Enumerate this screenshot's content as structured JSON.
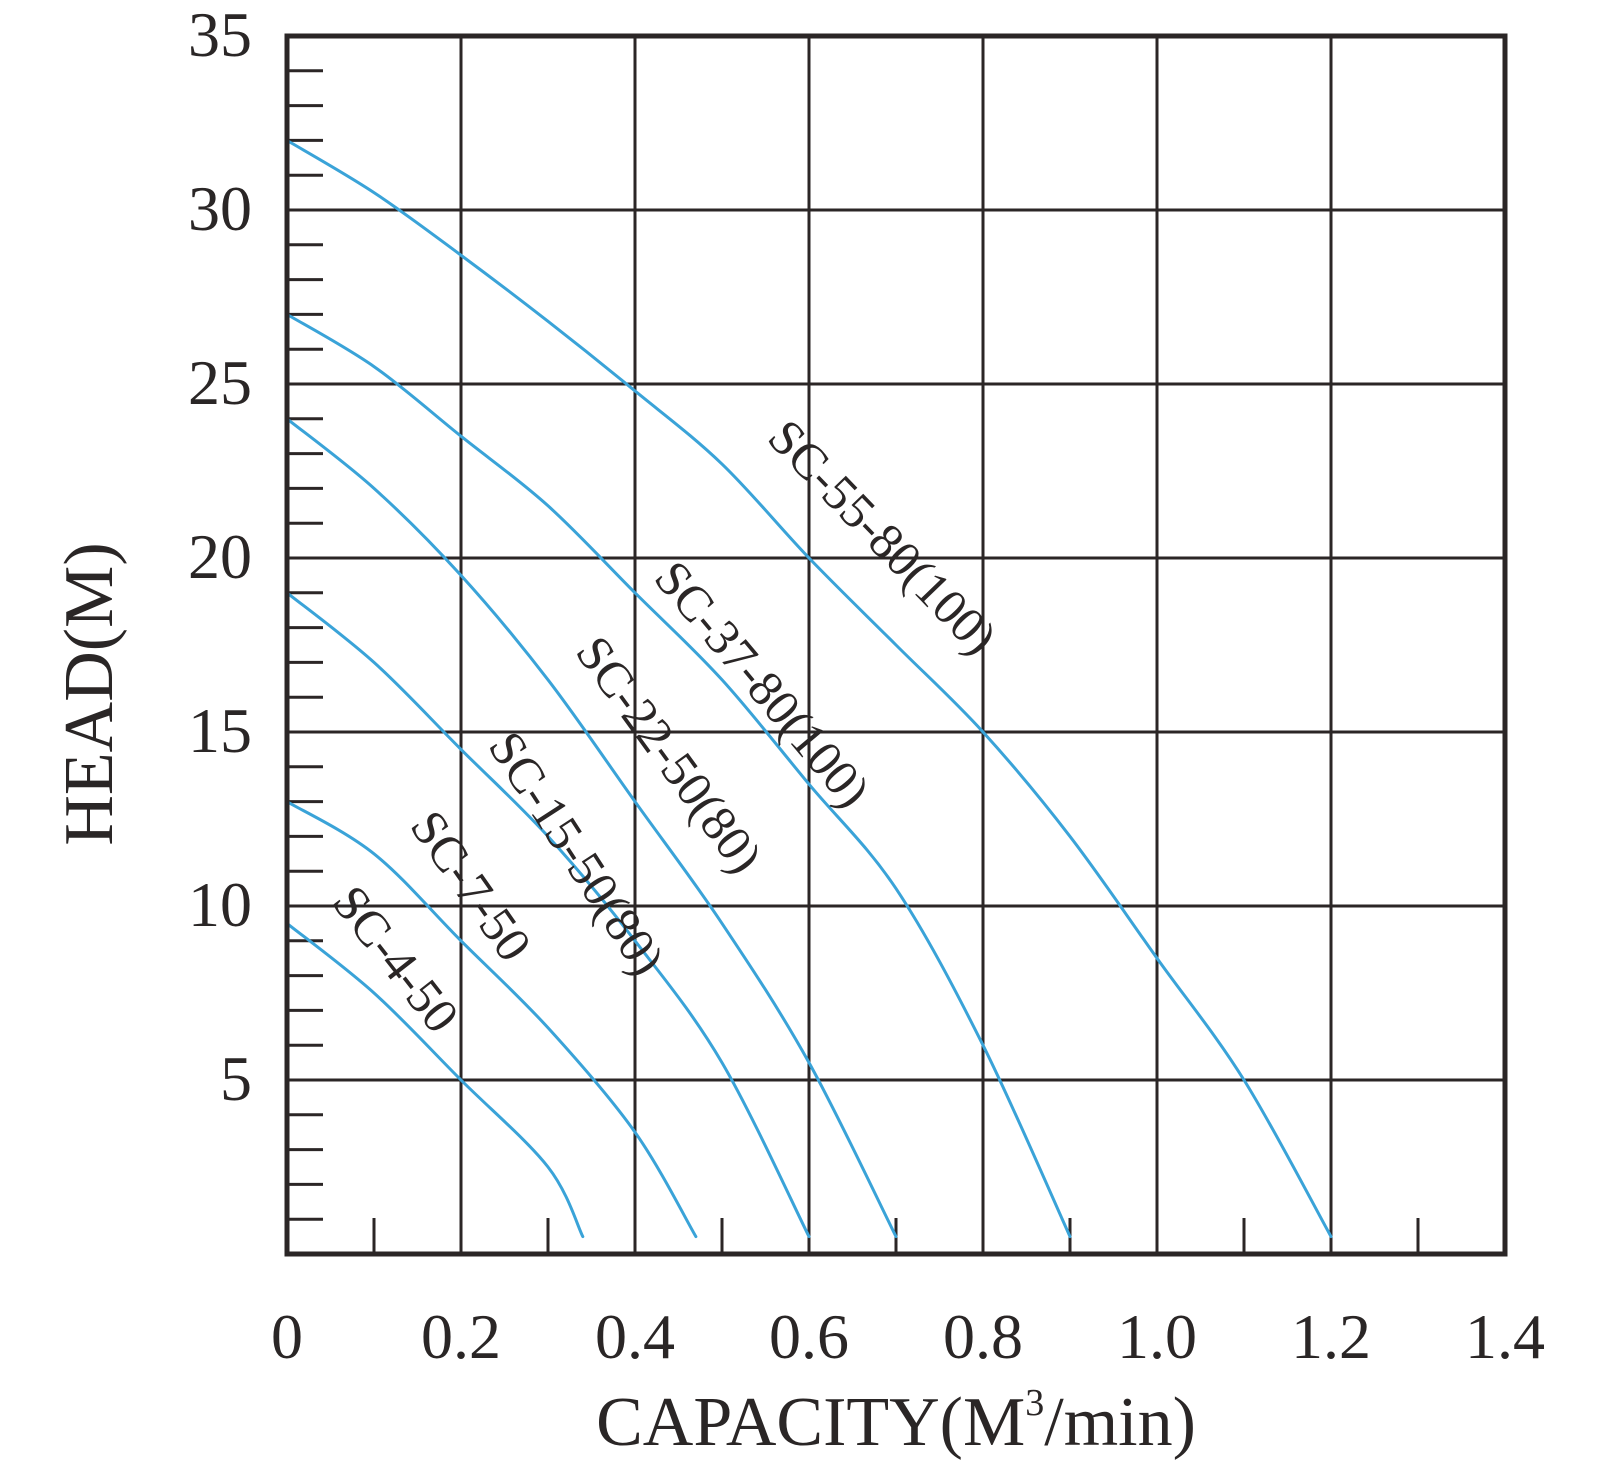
{
  "chart_data": {
    "type": "line",
    "title": "",
    "xlabel": "CAPACITY(M",
    "xlabel_superscript": "3",
    "xlabel_suffix": "/min)",
    "ylabel": "HEAD(M)",
    "xlim": [
      0,
      1.4
    ],
    "ylim": [
      0,
      35
    ],
    "x_ticks": [
      "0",
      "0.2",
      "0.4",
      "0.6",
      "0.8",
      "1.0",
      "1.2",
      "1.4"
    ],
    "y_ticks": [
      "5",
      "10",
      "15",
      "20",
      "25",
      "30",
      "35"
    ],
    "grid": true,
    "line_color": "#3aa3d8",
    "series": [
      {
        "name": "SC-55-80(100)",
        "x": [
          0,
          0.1,
          0.2,
          0.3,
          0.4,
          0.5,
          0.6,
          0.7,
          0.8,
          0.9,
          1.0,
          1.1,
          1.2
        ],
        "y": [
          32,
          30.5,
          28.7,
          26.8,
          24.8,
          22.7,
          20,
          17.5,
          15,
          12,
          8.5,
          5,
          0.5
        ]
      },
      {
        "name": "SC-37-80(100)",
        "x": [
          0,
          0.1,
          0.2,
          0.3,
          0.4,
          0.5,
          0.6,
          0.7,
          0.8,
          0.9
        ],
        "y": [
          27,
          25.5,
          23.5,
          21.5,
          19,
          16.5,
          13.5,
          10.5,
          6,
          0.5
        ]
      },
      {
        "name": "SC-22-50(80)",
        "x": [
          0,
          0.1,
          0.2,
          0.3,
          0.4,
          0.5,
          0.6,
          0.7
        ],
        "y": [
          24,
          22,
          19.5,
          16.5,
          13,
          9.5,
          5.5,
          0.5
        ]
      },
      {
        "name": "SC-15-50(80)",
        "x": [
          0,
          0.1,
          0.2,
          0.3,
          0.4,
          0.5,
          0.6
        ],
        "y": [
          19,
          17,
          14.5,
          12,
          9,
          5.5,
          0.5
        ]
      },
      {
        "name": "SC-7-50",
        "x": [
          0,
          0.1,
          0.2,
          0.3,
          0.4,
          0.47
        ],
        "y": [
          13,
          11.5,
          9,
          6.5,
          3.5,
          0.5
        ]
      },
      {
        "name": "SC-4-50",
        "x": [
          0,
          0.1,
          0.2,
          0.3,
          0.34
        ],
        "y": [
          9.5,
          7.5,
          5,
          2.5,
          0.5
        ]
      }
    ]
  }
}
